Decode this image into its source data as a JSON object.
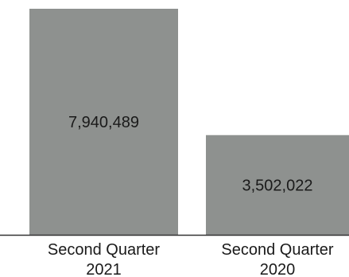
{
  "chart_data": {
    "type": "bar",
    "title": "",
    "xlabel": "",
    "ylabel": "",
    "categories": [
      [
        "Second Quarter",
        "2021"
      ],
      [
        "Second Quarter",
        "2020"
      ]
    ],
    "values": [
      7940489,
      3502022
    ],
    "value_labels": [
      "7,940,489",
      "3,502,022"
    ],
    "ylim": [
      0,
      7940489
    ],
    "grid": false,
    "legend": "none",
    "colors": {
      "bar": "#8e918f",
      "axis": "#333333",
      "text": "#1a1a1a"
    }
  }
}
